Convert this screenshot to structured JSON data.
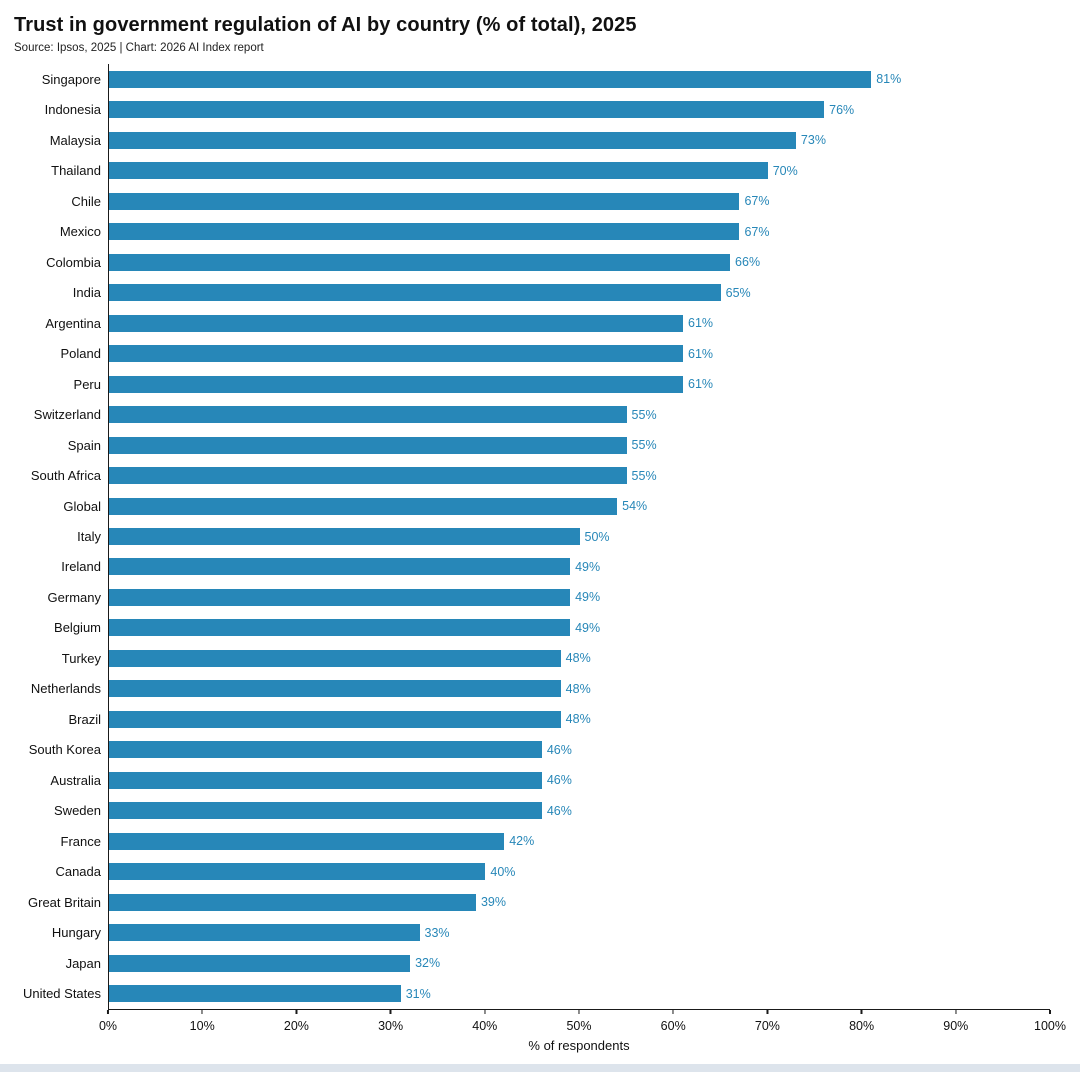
{
  "header": {
    "title": "Trust in government regulation of AI by country (% of total), 2025",
    "source": "Source: Ipsos, 2025 | Chart: 2026 AI Index report"
  },
  "chart_data": {
    "type": "bar",
    "orientation": "horizontal",
    "title": "Trust in government regulation of AI by country (% of total), 2025",
    "source": "Source: Ipsos, 2025 | Chart: 2026 AI Index report",
    "categories": [
      "Singapore",
      "Indonesia",
      "Malaysia",
      "Thailand",
      "Chile",
      "Mexico",
      "Colombia",
      "India",
      "Argentina",
      "Poland",
      "Peru",
      "Switzerland",
      "Spain",
      "South Africa",
      "Global",
      "Italy",
      "Ireland",
      "Germany",
      "Belgium",
      "Turkey",
      "Netherlands",
      "Brazil",
      "South Korea",
      "Australia",
      "Sweden",
      "France",
      "Canada",
      "Great Britain",
      "Hungary",
      "Japan",
      "United States"
    ],
    "values": [
      81,
      76,
      73,
      70,
      67,
      67,
      66,
      65,
      61,
      61,
      61,
      55,
      55,
      55,
      54,
      50,
      49,
      49,
      49,
      48,
      48,
      48,
      46,
      46,
      46,
      42,
      40,
      39,
      33,
      32,
      31
    ],
    "value_suffix": "%",
    "xlabel": "% of respondents",
    "xlim": [
      0,
      100
    ],
    "x_ticks": [
      0,
      10,
      20,
      30,
      40,
      50,
      60,
      70,
      80,
      90,
      100
    ],
    "x_tick_labels": [
      "0%",
      "10%",
      "20%",
      "30%",
      "40%",
      "50%",
      "60%",
      "70%",
      "80%",
      "90%",
      "100%"
    ],
    "bar_color": "#2787B8",
    "value_label_color": "#2787B8",
    "grid": false,
    "legend": null
  }
}
